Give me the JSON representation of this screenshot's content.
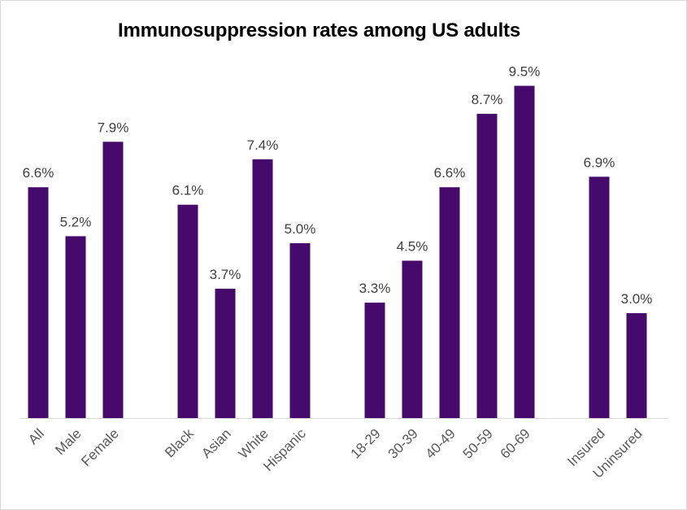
{
  "chart_data": {
    "type": "bar",
    "title": "Immunosuppression rates among US adults",
    "xlabel": "",
    "ylabel": "",
    "ylim": [
      0,
      10
    ],
    "grid": false,
    "legend": "none",
    "bar_color": "#450A6B",
    "groups": [
      [
        "All",
        "Male",
        "Female"
      ],
      [
        "Black",
        "Asian",
        "White",
        "Hispanic"
      ],
      [
        "18-29",
        "30-39",
        "40-49",
        "50-59",
        "60-69"
      ],
      [
        "Insured",
        "Uninsured"
      ]
    ],
    "categories": [
      "All",
      "Male",
      "Female",
      "Black",
      "Asian",
      "White",
      "Hispanic",
      "18-29",
      "30-39",
      "40-49",
      "50-59",
      "60-69",
      "Insured",
      "Uninsured"
    ],
    "values": [
      6.6,
      5.2,
      7.9,
      6.1,
      3.7,
      7.4,
      5.0,
      3.3,
      4.5,
      6.6,
      8.7,
      9.5,
      6.9,
      3.0
    ],
    "data_labels": [
      "6.6%",
      "5.2%",
      "7.9%",
      "6.1%",
      "3.7%",
      "7.4%",
      "5.0%",
      "3.3%",
      "4.5%",
      "6.6%",
      "8.7%",
      "9.5%",
      "6.9%",
      "3.0%"
    ]
  }
}
